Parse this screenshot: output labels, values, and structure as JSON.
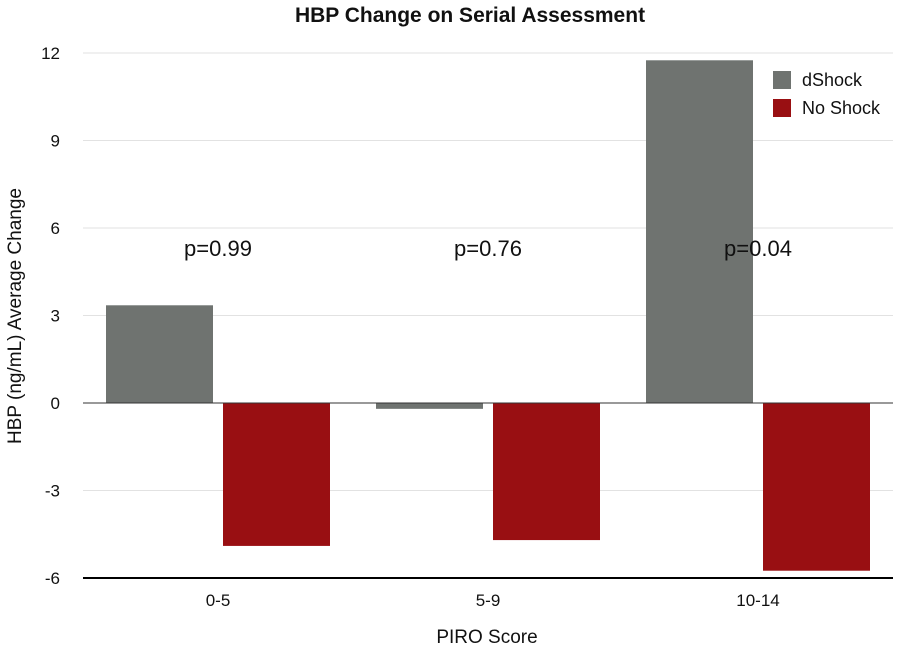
{
  "chart_data": {
    "type": "bar",
    "title": "HBP Change on Serial Assessment",
    "xlabel": "PIRO Score",
    "ylabel": "HBP (ng/mL) Average Change",
    "categories": [
      "0-5",
      "5-9",
      "10-14"
    ],
    "series": [
      {
        "name": "dShock",
        "values": [
          3.35,
          -0.2,
          11.75
        ],
        "color": "#6f7370"
      },
      {
        "name": "No Shock",
        "values": [
          -4.9,
          -4.7,
          -5.75
        ],
        "color": "#990f12"
      }
    ],
    "annotations": [
      "p=0.99",
      "p=0.76",
      "p=0.04"
    ],
    "ylim": [
      -6,
      12
    ],
    "yticks": [
      "12",
      "9",
      "6",
      "3",
      "0",
      "-3",
      "-6"
    ],
    "grid": true,
    "legend_position": "top-right"
  }
}
